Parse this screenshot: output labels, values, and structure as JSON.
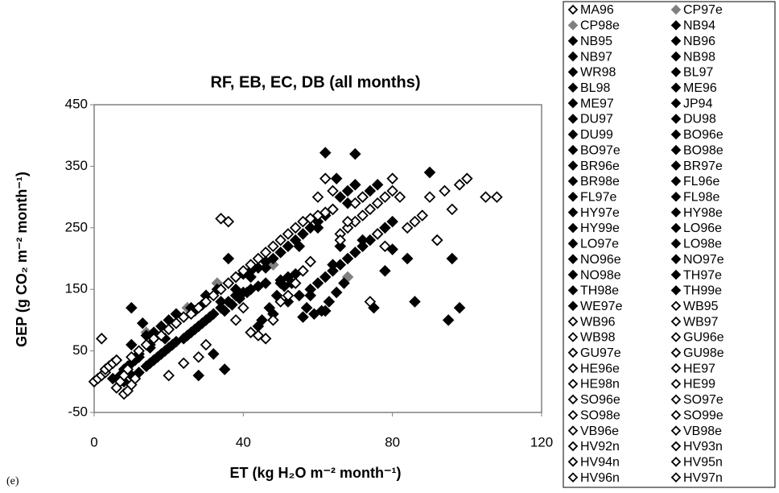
{
  "chart_data": {
    "type": "scatter",
    "title": "RF, EB, EC, DB (all months)",
    "x_label": "ET (kg H₂O m⁻² month⁻¹)",
    "y_label": "GEP (g CO₂ m⁻² month⁻¹)",
    "panel_label": "(e)",
    "xlim": [
      0,
      120
    ],
    "xticks": [
      0,
      40,
      80,
      120
    ],
    "ylim": [
      -50,
      450
    ],
    "yticks": [
      -50,
      50,
      150,
      250,
      350,
      450
    ],
    "marker": "diamond",
    "series": [
      {
        "name": "MA96",
        "color": "#000000",
        "filled": false,
        "x": [
          2,
          5,
          8,
          12
        ],
        "y": [
          70,
          30,
          15,
          40
        ]
      },
      {
        "name": "CP97e",
        "color": "#808080",
        "filled": true,
        "x": [
          25,
          33,
          40,
          48
        ],
        "y": [
          120,
          160,
          175,
          190
        ]
      },
      {
        "name": "CP98e",
        "color": "#808080",
        "filled": true,
        "x": [
          14,
          22,
          30,
          68
        ],
        "y": [
          80,
          110,
          140,
          170
        ]
      },
      {
        "name": "NB94",
        "color": "#000000",
        "filled": true,
        "x": [
          8,
          10,
          12,
          15
        ],
        "y": [
          20,
          30,
          40,
          55
        ]
      },
      {
        "name": "NB95",
        "color": "#000000",
        "filled": true,
        "x": [
          10,
          14,
          18,
          20
        ],
        "y": [
          60,
          75,
          90,
          100
        ]
      },
      {
        "name": "NB96",
        "color": "#000000",
        "filled": true,
        "x": [
          22,
          26,
          30,
          34
        ],
        "y": [
          110,
          120,
          140,
          130
        ]
      },
      {
        "name": "NB97",
        "color": "#000000",
        "filled": true,
        "x": [
          38,
          42,
          46,
          50
        ],
        "y": [
          150,
          170,
          185,
          160
        ]
      },
      {
        "name": "NB98",
        "color": "#000000",
        "filled": true,
        "x": [
          55,
          60,
          62,
          65
        ],
        "y": [
          220,
          250,
          372,
          330
        ]
      },
      {
        "name": "WR98",
        "color": "#000000",
        "filled": true,
        "x": [
          70,
          72,
          74,
          76
        ],
        "y": [
          370,
          300,
          310,
          320
        ]
      },
      {
        "name": "BL97",
        "color": "#000000",
        "filled": true,
        "x": [
          28,
          32,
          35,
          36
        ],
        "y": [
          10,
          45,
          20,
          200
        ]
      },
      {
        "name": "BL98",
        "color": "#000000",
        "filled": true,
        "x": [
          44,
          48,
          52,
          56
        ],
        "y": [
          90,
          110,
          130,
          105
        ]
      },
      {
        "name": "ME96",
        "color": "#000000",
        "filled": true,
        "x": [
          58,
          62,
          64,
          66
        ],
        "y": [
          140,
          115,
          190,
          220
        ]
      },
      {
        "name": "ME97",
        "color": "#000000",
        "filled": true,
        "x": [
          68,
          72,
          75,
          78
        ],
        "y": [
          290,
          230,
          120,
          180
        ]
      },
      {
        "name": "JP94",
        "color": "#000000",
        "filled": true,
        "x": [
          80,
          84,
          86,
          90
        ],
        "y": [
          215,
          200,
          130,
          340
        ]
      },
      {
        "name": "DU97",
        "color": "#000000",
        "filled": true,
        "x": [
          92,
          95,
          96,
          98
        ],
        "y": [
          230,
          100,
          200,
          120
        ]
      },
      {
        "name": "DU98",
        "color": "#000000",
        "filled": true,
        "x": [
          5,
          7,
          9,
          11
        ],
        "y": [
          5,
          10,
          25,
          35
        ]
      },
      {
        "name": "DU99",
        "color": "#000000",
        "filled": true,
        "x": [
          12,
          15,
          18,
          20
        ],
        "y": [
          45,
          60,
          75,
          85
        ]
      },
      {
        "name": "BO96e",
        "color": "#000000",
        "filled": true,
        "x": [
          22,
          24,
          27,
          29
        ],
        "y": [
          95,
          105,
          115,
          125
        ]
      },
      {
        "name": "BO97e",
        "color": "#000000",
        "filled": true,
        "x": [
          30,
          33,
          36,
          38
        ],
        "y": [
          140,
          150,
          160,
          170
        ]
      },
      {
        "name": "BO98e",
        "color": "#000000",
        "filled": true,
        "x": [
          40,
          42,
          44,
          46
        ],
        "y": [
          175,
          180,
          185,
          195
        ]
      },
      {
        "name": "BR96e",
        "color": "#000000",
        "filled": true,
        "x": [
          48,
          50,
          52,
          54
        ],
        "y": [
          200,
          210,
          220,
          230
        ]
      },
      {
        "name": "BR97e",
        "color": "#000000",
        "filled": true,
        "x": [
          56,
          58,
          60,
          62
        ],
        "y": [
          240,
          250,
          260,
          270
        ]
      },
      {
        "name": "BR98e",
        "color": "#000000",
        "filled": true,
        "x": [
          64,
          66,
          68,
          70
        ],
        "y": [
          280,
          300,
          310,
          320
        ]
      },
      {
        "name": "FL96e",
        "color": "#000000",
        "filled": true,
        "x": [
          15,
          17,
          19,
          21
        ],
        "y": [
          30,
          40,
          50,
          60
        ]
      },
      {
        "name": "FL97e",
        "color": "#000000",
        "filled": true,
        "x": [
          24,
          26,
          28,
          30
        ],
        "y": [
          70,
          80,
          90,
          100
        ]
      },
      {
        "name": "FL98e",
        "color": "#000000",
        "filled": true,
        "x": [
          32,
          34,
          36,
          38
        ],
        "y": [
          110,
          120,
          130,
          140
        ]
      },
      {
        "name": "HY97e",
        "color": "#000000",
        "filled": true,
        "x": [
          40,
          42,
          44,
          46
        ],
        "y": [
          145,
          150,
          155,
          160
        ]
      },
      {
        "name": "HY98e",
        "color": "#000000",
        "filled": true,
        "x": [
          50,
          52,
          54,
          56
        ],
        "y": [
          165,
          170,
          175,
          180
        ]
      },
      {
        "name": "HY99e",
        "color": "#000000",
        "filled": true,
        "x": [
          58,
          60,
          62,
          64
        ],
        "y": [
          150,
          160,
          170,
          180
        ]
      },
      {
        "name": "LO96e",
        "color": "#000000",
        "filled": true,
        "x": [
          66,
          68,
          70,
          72
        ],
        "y": [
          190,
          200,
          210,
          220
        ]
      },
      {
        "name": "LO97e",
        "color": "#000000",
        "filled": true,
        "x": [
          74,
          76,
          78,
          80
        ],
        "y": [
          230,
          240,
          250,
          260
        ]
      },
      {
        "name": "LO98e",
        "color": "#000000",
        "filled": true,
        "x": [
          8,
          10,
          12,
          14
        ],
        "y": [
          0,
          10,
          15,
          25
        ]
      },
      {
        "name": "NO96e",
        "color": "#000000",
        "filled": true,
        "x": [
          16,
          18,
          20,
          22
        ],
        "y": [
          35,
          45,
          55,
          65
        ]
      },
      {
        "name": "NO97e",
        "color": "#000000",
        "filled": true,
        "x": [
          25,
          27,
          29,
          31
        ],
        "y": [
          75,
          85,
          95,
          105
        ]
      },
      {
        "name": "NO98e",
        "color": "#000000",
        "filled": true,
        "x": [
          35,
          37,
          39,
          41
        ],
        "y": [
          115,
          125,
          135,
          145
        ]
      },
      {
        "name": "TH97e",
        "color": "#000000",
        "filled": true,
        "x": [
          45,
          47,
          49,
          51
        ],
        "y": [
          100,
          120,
          140,
          155
        ]
      },
      {
        "name": "TH98e",
        "color": "#000000",
        "filled": true,
        "x": [
          53,
          55,
          57,
          59
        ],
        "y": [
          160,
          140,
          120,
          110
        ]
      },
      {
        "name": "TH99e",
        "color": "#000000",
        "filled": true,
        "x": [
          61,
          63,
          65,
          67
        ],
        "y": [
          115,
          130,
          145,
          160
        ]
      },
      {
        "name": "WE97e",
        "color": "#000000",
        "filled": true,
        "x": [
          10,
          13,
          16,
          19
        ],
        "y": [
          120,
          95,
          80,
          70
        ]
      },
      {
        "name": "WB95",
        "color": "#000000",
        "filled": false,
        "x": [
          0,
          1,
          2,
          3
        ],
        "y": [
          0,
          5,
          10,
          15
        ]
      },
      {
        "name": "WB96",
        "color": "#000000",
        "filled": false,
        "x": [
          3,
          4,
          5,
          6
        ],
        "y": [
          20,
          25,
          30,
          35
        ]
      },
      {
        "name": "WB97",
        "color": "#000000",
        "filled": false,
        "x": [
          6,
          7,
          8,
          9
        ],
        "y": [
          -10,
          0,
          10,
          20
        ]
      },
      {
        "name": "WB98",
        "color": "#000000",
        "filled": false,
        "x": [
          8,
          9,
          10,
          11
        ],
        "y": [
          -20,
          -15,
          -5,
          5
        ]
      },
      {
        "name": "GU96e",
        "color": "#000000",
        "filled": false,
        "x": [
          10,
          12,
          14,
          16
        ],
        "y": [
          40,
          50,
          60,
          70
        ]
      },
      {
        "name": "GU97e",
        "color": "#000000",
        "filled": false,
        "x": [
          18,
          20,
          22,
          24
        ],
        "y": [
          75,
          85,
          95,
          105
        ]
      },
      {
        "name": "GU98e",
        "color": "#000000",
        "filled": false,
        "x": [
          26,
          28,
          30,
          32
        ],
        "y": [
          110,
          120,
          130,
          140
        ]
      },
      {
        "name": "HE96e",
        "color": "#000000",
        "filled": false,
        "x": [
          34,
          36,
          38,
          40
        ],
        "y": [
          150,
          160,
          170,
          180
        ]
      },
      {
        "name": "HE97",
        "color": "#000000",
        "filled": false,
        "x": [
          42,
          44,
          46,
          48
        ],
        "y": [
          190,
          200,
          210,
          220
        ]
      },
      {
        "name": "HE98n",
        "color": "#000000",
        "filled": false,
        "x": [
          50,
          52,
          54,
          56
        ],
        "y": [
          230,
          240,
          250,
          260
        ]
      },
      {
        "name": "HE99",
        "color": "#000000",
        "filled": false,
        "x": [
          58,
          60,
          62,
          64
        ],
        "y": [
          265,
          270,
          275,
          280
        ]
      },
      {
        "name": "SO96e",
        "color": "#000000",
        "filled": false,
        "x": [
          66,
          68,
          70,
          72
        ],
        "y": [
          240,
          250,
          260,
          270
        ]
      },
      {
        "name": "SO97e",
        "color": "#000000",
        "filled": false,
        "x": [
          74,
          76,
          78,
          80
        ],
        "y": [
          280,
          290,
          300,
          310
        ]
      },
      {
        "name": "SO98e",
        "color": "#000000",
        "filled": false,
        "x": [
          82,
          84,
          86,
          88
        ],
        "y": [
          300,
          250,
          260,
          270
        ]
      },
      {
        "name": "SO99e",
        "color": "#000000",
        "filled": false,
        "x": [
          90,
          92,
          94,
          96
        ],
        "y": [
          300,
          230,
          310,
          280
        ]
      },
      {
        "name": "VB96e",
        "color": "#000000",
        "filled": false,
        "x": [
          98,
          100,
          105,
          108
        ],
        "y": [
          320,
          330,
          300,
          300
        ]
      },
      {
        "name": "VB98e",
        "color": "#000000",
        "filled": false,
        "x": [
          20,
          24,
          28,
          30
        ],
        "y": [
          10,
          30,
          40,
          60
        ]
      },
      {
        "name": "HV92n",
        "color": "#000000",
        "filled": false,
        "x": [
          34,
          36,
          38,
          40
        ],
        "y": [
          265,
          260,
          100,
          120
        ]
      },
      {
        "name": "HV93n",
        "color": "#000000",
        "filled": false,
        "x": [
          42,
          44,
          46,
          48
        ],
        "y": [
          80,
          75,
          70,
          100
        ]
      },
      {
        "name": "HV94n",
        "color": "#000000",
        "filled": false,
        "x": [
          50,
          52,
          54,
          56
        ],
        "y": [
          130,
          140,
          160,
          180
        ]
      },
      {
        "name": "HV95n",
        "color": "#000000",
        "filled": false,
        "x": [
          58,
          60,
          62,
          64
        ],
        "y": [
          195,
          300,
          330,
          310
        ]
      },
      {
        "name": "HV96n",
        "color": "#000000",
        "filled": false,
        "x": [
          66,
          68,
          70,
          72
        ],
        "y": [
          230,
          260,
          290,
          300
        ]
      },
      {
        "name": "HV97n",
        "color": "#000000",
        "filled": false,
        "x": [
          74,
          76,
          78,
          80
        ],
        "y": [
          130,
          240,
          220,
          330
        ]
      }
    ]
  }
}
